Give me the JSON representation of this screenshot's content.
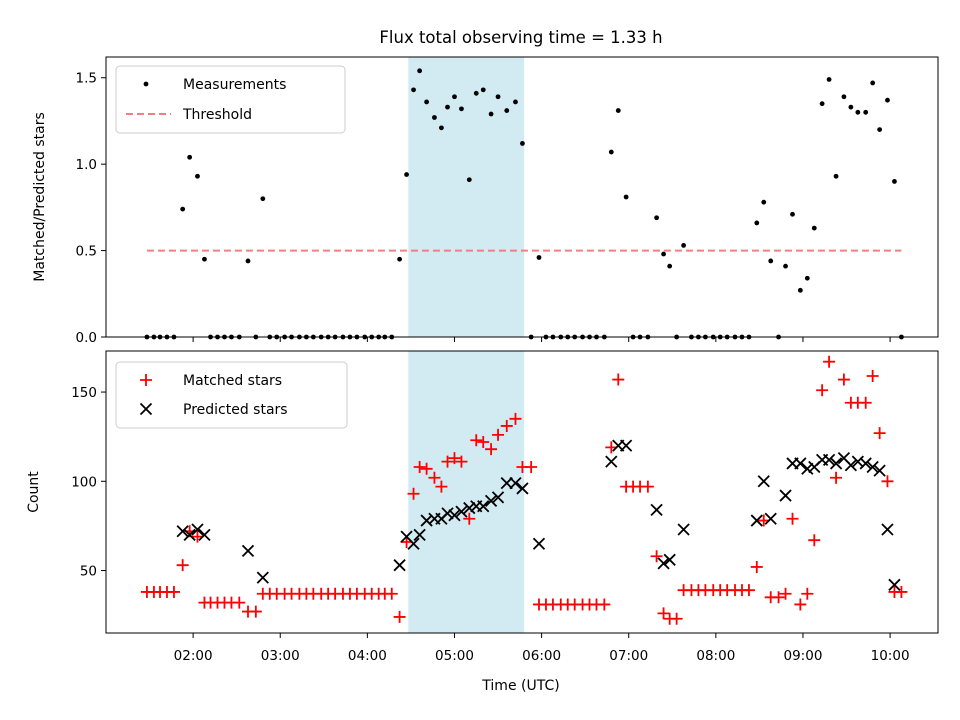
{
  "chart_data": [
    {
      "type": "scatter",
      "title": "Flux total observing time = 1.33 h",
      "xlabel": "",
      "ylabel": "Matched/Predicted stars",
      "ylim": [
        0,
        1.62
      ],
      "yticks": [
        0.0,
        0.5,
        1.0,
        1.5
      ],
      "ytick_labels": [
        "0.0",
        "0.5",
        "1.0",
        "1.5"
      ],
      "grid": false,
      "legend": "upper-left",
      "highlight_span": {
        "x0": 4.47,
        "x1": 5.8,
        "color": "#add8e6"
      },
      "series": [
        {
          "name": "Measurements",
          "kind": "dot",
          "color": "#000000",
          "points": [
            [
              1.47,
              0
            ],
            [
              1.55,
              0
            ],
            [
              1.62,
              0
            ],
            [
              1.7,
              0
            ],
            [
              1.78,
              0
            ],
            [
              1.88,
              0.74
            ],
            [
              1.96,
              1.04
            ],
            [
              2.05,
              0.93
            ],
            [
              2.13,
              0.45
            ],
            [
              2.2,
              0
            ],
            [
              2.28,
              0
            ],
            [
              2.36,
              0
            ],
            [
              2.44,
              0
            ],
            [
              2.53,
              0
            ],
            [
              2.63,
              0.44
            ],
            [
              2.72,
              0
            ],
            [
              2.8,
              0.8
            ],
            [
              2.88,
              0
            ],
            [
              2.96,
              0
            ],
            [
              3.05,
              0
            ],
            [
              3.13,
              0
            ],
            [
              3.22,
              0
            ],
            [
              3.3,
              0
            ],
            [
              3.38,
              0
            ],
            [
              3.47,
              0
            ],
            [
              3.55,
              0
            ],
            [
              3.63,
              0
            ],
            [
              3.72,
              0
            ],
            [
              3.8,
              0
            ],
            [
              3.88,
              0
            ],
            [
              3.97,
              0
            ],
            [
              4.05,
              0
            ],
            [
              4.13,
              0
            ],
            [
              4.2,
              0
            ],
            [
              4.28,
              0
            ],
            [
              4.37,
              0.45
            ],
            [
              4.45,
              0.94
            ],
            [
              4.53,
              1.43
            ],
            [
              4.6,
              1.54
            ],
            [
              4.68,
              1.36
            ],
            [
              4.77,
              1.27
            ],
            [
              4.85,
              1.21
            ],
            [
              4.92,
              1.33
            ],
            [
              5.0,
              1.39
            ],
            [
              5.08,
              1.32
            ],
            [
              5.17,
              0.91
            ],
            [
              5.25,
              1.41
            ],
            [
              5.33,
              1.43
            ],
            [
              5.42,
              1.29
            ],
            [
              5.5,
              1.39
            ],
            [
              5.6,
              1.31
            ],
            [
              5.7,
              1.36
            ],
            [
              5.78,
              1.12
            ],
            [
              5.88,
              0
            ],
            [
              5.97,
              0.46
            ],
            [
              6.05,
              0
            ],
            [
              6.13,
              0
            ],
            [
              6.22,
              0
            ],
            [
              6.3,
              0
            ],
            [
              6.38,
              0
            ],
            [
              6.47,
              0
            ],
            [
              6.55,
              0
            ],
            [
              6.63,
              0
            ],
            [
              6.72,
              0
            ],
            [
              6.8,
              1.07
            ],
            [
              6.88,
              1.31
            ],
            [
              6.97,
              0.81
            ],
            [
              7.05,
              0
            ],
            [
              7.13,
              0
            ],
            [
              7.22,
              0
            ],
            [
              7.32,
              0.69
            ],
            [
              7.4,
              0.48
            ],
            [
              7.47,
              0.41
            ],
            [
              7.55,
              0
            ],
            [
              7.63,
              0.53
            ],
            [
              7.72,
              0
            ],
            [
              7.8,
              0
            ],
            [
              7.88,
              0
            ],
            [
              7.97,
              0
            ],
            [
              8.05,
              0
            ],
            [
              8.13,
              0
            ],
            [
              8.22,
              0
            ],
            [
              8.3,
              0
            ],
            [
              8.38,
              0
            ],
            [
              8.47,
              0.66
            ],
            [
              8.55,
              0.78
            ],
            [
              8.63,
              0.44
            ],
            [
              8.72,
              0
            ],
            [
              8.8,
              0.41
            ],
            [
              8.88,
              0.71
            ],
            [
              8.97,
              0.27
            ],
            [
              9.05,
              0.34
            ],
            [
              9.13,
              0.63
            ],
            [
              9.22,
              1.35
            ],
            [
              9.3,
              1.49
            ],
            [
              9.38,
              0.93
            ],
            [
              9.47,
              1.39
            ],
            [
              9.55,
              1.33
            ],
            [
              9.63,
              1.3
            ],
            [
              9.72,
              1.3
            ],
            [
              9.8,
              1.47
            ],
            [
              9.88,
              1.2
            ],
            [
              9.97,
              1.37
            ],
            [
              10.05,
              0.9
            ],
            [
              10.13,
              0
            ]
          ]
        },
        {
          "name": "Threshold",
          "kind": "dashed-line",
          "color": "#f08080",
          "points": [
            [
              1.47,
              0.5
            ],
            [
              10.13,
              0.5
            ]
          ]
        }
      ]
    },
    {
      "type": "scatter",
      "title": "",
      "xlabel": "Time (UTC)",
      "ylabel": "Count",
      "ylim": [
        15,
        173
      ],
      "yticks": [
        50,
        100,
        150
      ],
      "ytick_labels": [
        "50",
        "100",
        "150"
      ],
      "xlim": [
        1.0,
        10.55
      ],
      "xticks": [
        2,
        3,
        4,
        5,
        6,
        7,
        8,
        9,
        10
      ],
      "xtick_labels": [
        "02:00",
        "03:00",
        "04:00",
        "05:00",
        "06:00",
        "07:00",
        "08:00",
        "09:00",
        "10:00"
      ],
      "grid": false,
      "legend": "upper-left",
      "highlight_span": {
        "x0": 4.47,
        "x1": 5.8,
        "color": "#add8e6"
      },
      "series": [
        {
          "name": "Matched stars",
          "kind": "plus",
          "color": "#ff0000",
          "points": [
            [
              1.47,
              38
            ],
            [
              1.55,
              38
            ],
            [
              1.62,
              38
            ],
            [
              1.7,
              38
            ],
            [
              1.78,
              38
            ],
            [
              1.88,
              53
            ],
            [
              1.96,
              72
            ],
            [
              2.05,
              69
            ],
            [
              2.13,
              32
            ],
            [
              2.2,
              32
            ],
            [
              2.28,
              32
            ],
            [
              2.36,
              32
            ],
            [
              2.44,
              32
            ],
            [
              2.53,
              32
            ],
            [
              2.63,
              27
            ],
            [
              2.72,
              27
            ],
            [
              2.8,
              37
            ],
            [
              2.88,
              37
            ],
            [
              2.96,
              37
            ],
            [
              3.05,
              37
            ],
            [
              3.13,
              37
            ],
            [
              3.22,
              37
            ],
            [
              3.3,
              37
            ],
            [
              3.38,
              37
            ],
            [
              3.47,
              37
            ],
            [
              3.55,
              37
            ],
            [
              3.63,
              37
            ],
            [
              3.72,
              37
            ],
            [
              3.8,
              37
            ],
            [
              3.88,
              37
            ],
            [
              3.97,
              37
            ],
            [
              4.05,
              37
            ],
            [
              4.13,
              37
            ],
            [
              4.2,
              37
            ],
            [
              4.28,
              37
            ],
            [
              4.37,
              24
            ],
            [
              4.45,
              66
            ],
            [
              4.53,
              93
            ],
            [
              4.6,
              108
            ],
            [
              4.68,
              107
            ],
            [
              4.77,
              102
            ],
            [
              4.85,
              97
            ],
            [
              4.92,
              111
            ],
            [
              5.0,
              113
            ],
            [
              5.08,
              111
            ],
            [
              5.17,
              79
            ],
            [
              5.25,
              123
            ],
            [
              5.33,
              122
            ],
            [
              5.42,
              118
            ],
            [
              5.5,
              126
            ],
            [
              5.6,
              131
            ],
            [
              5.7,
              135
            ],
            [
              5.78,
              108
            ],
            [
              5.88,
              108
            ],
            [
              5.97,
              31
            ],
            [
              6.05,
              31
            ],
            [
              6.13,
              31
            ],
            [
              6.22,
              31
            ],
            [
              6.3,
              31
            ],
            [
              6.38,
              31
            ],
            [
              6.47,
              31
            ],
            [
              6.55,
              31
            ],
            [
              6.63,
              31
            ],
            [
              6.72,
              31
            ],
            [
              6.8,
              119
            ],
            [
              6.88,
              157
            ],
            [
              6.97,
              97
            ],
            [
              7.05,
              97
            ],
            [
              7.13,
              97
            ],
            [
              7.22,
              97
            ],
            [
              7.32,
              58
            ],
            [
              7.4,
              26
            ],
            [
              7.47,
              23
            ],
            [
              7.55,
              23
            ],
            [
              7.63,
              39
            ],
            [
              7.72,
              39
            ],
            [
              7.8,
              39
            ],
            [
              7.88,
              39
            ],
            [
              7.97,
              39
            ],
            [
              8.05,
              39
            ],
            [
              8.13,
              39
            ],
            [
              8.22,
              39
            ],
            [
              8.3,
              39
            ],
            [
              8.38,
              39
            ],
            [
              8.47,
              52
            ],
            [
              8.55,
              78
            ],
            [
              8.63,
              35
            ],
            [
              8.72,
              35
            ],
            [
              8.8,
              37
            ],
            [
              8.88,
              79
            ],
            [
              8.97,
              31
            ],
            [
              9.05,
              37
            ],
            [
              9.13,
              67
            ],
            [
              9.22,
              151
            ],
            [
              9.3,
              167
            ],
            [
              9.38,
              102
            ],
            [
              9.47,
              157
            ],
            [
              9.55,
              144
            ],
            [
              9.63,
              144
            ],
            [
              9.72,
              144
            ],
            [
              9.8,
              159
            ],
            [
              9.88,
              127
            ],
            [
              9.97,
              100
            ],
            [
              10.05,
              38
            ],
            [
              10.13,
              38
            ]
          ]
        },
        {
          "name": "Predicted stars",
          "kind": "x",
          "color": "#000000",
          "points": [
            [
              1.88,
              72
            ],
            [
              1.96,
              70
            ],
            [
              2.05,
              73
            ],
            [
              2.13,
              70
            ],
            [
              2.63,
              61
            ],
            [
              2.8,
              46
            ],
            [
              4.37,
              53
            ],
            [
              4.45,
              69
            ],
            [
              4.53,
              65
            ],
            [
              4.6,
              70
            ],
            [
              4.68,
              78
            ],
            [
              4.77,
              79
            ],
            [
              4.85,
              79
            ],
            [
              4.92,
              82
            ],
            [
              5.0,
              81
            ],
            [
              5.08,
              83
            ],
            [
              5.17,
              85
            ],
            [
              5.25,
              86
            ],
            [
              5.33,
              86
            ],
            [
              5.42,
              89
            ],
            [
              5.5,
              91
            ],
            [
              5.6,
              99
            ],
            [
              5.7,
              99
            ],
            [
              5.78,
              96
            ],
            [
              5.97,
              65
            ],
            [
              6.8,
              111
            ],
            [
              6.88,
              120
            ],
            [
              6.97,
              120
            ],
            [
              7.32,
              84
            ],
            [
              7.4,
              54
            ],
            [
              7.47,
              56
            ],
            [
              7.63,
              73
            ],
            [
              8.47,
              78
            ],
            [
              8.55,
              100
            ],
            [
              8.63,
              79
            ],
            [
              8.8,
              92
            ],
            [
              8.88,
              110
            ],
            [
              8.97,
              110
            ],
            [
              9.05,
              107
            ],
            [
              9.13,
              108
            ],
            [
              9.22,
              112
            ],
            [
              9.3,
              112
            ],
            [
              9.38,
              110
            ],
            [
              9.47,
              113
            ],
            [
              9.55,
              109
            ],
            [
              9.63,
              111
            ],
            [
              9.72,
              110
            ],
            [
              9.8,
              108
            ],
            [
              9.88,
              106
            ],
            [
              9.97,
              73
            ],
            [
              10.05,
              42
            ]
          ]
        }
      ]
    }
  ]
}
